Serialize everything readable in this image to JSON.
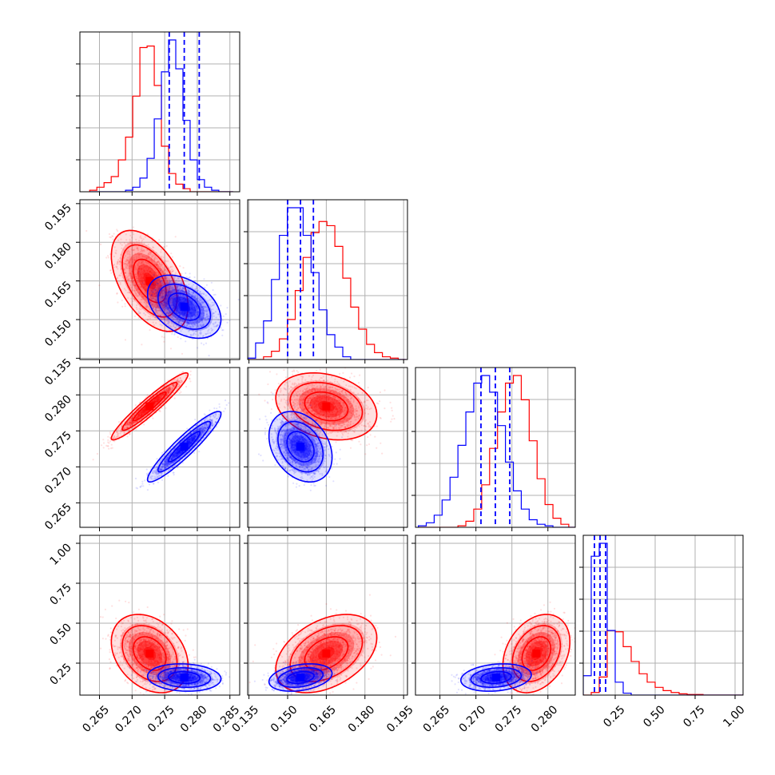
{
  "chart_data": {
    "type": "corner",
    "grid": true,
    "colors": {
      "model_a": "#ff0000",
      "model_b": "#0000ff"
    },
    "parameters": [
      {
        "ticks": [
          0.265,
          0.27,
          0.275,
          0.28,
          0.285
        ],
        "tick_labels": [
          "0.265",
          "0.270",
          "0.275",
          "0.280",
          "0.285"
        ],
        "range": [
          0.262,
          0.2865
        ]
      },
      {
        "ticks": [
          0.135,
          0.15,
          0.165,
          0.18,
          0.195
        ],
        "tick_labels": [
          "0.135",
          "0.150",
          "0.165",
          "0.180",
          "0.195"
        ],
        "range": [
          0.1345,
          0.1965
        ]
      },
      {
        "ticks": [
          0.265,
          0.27,
          0.275,
          0.28
        ],
        "tick_labels": [
          "0.265",
          "0.270",
          "0.275",
          "0.280"
        ],
        "range": [
          0.2616,
          0.2838
        ]
      },
      {
        "ticks": [
          0.25,
          0.5,
          0.75,
          1.0
        ],
        "tick_labels": [
          "0.25",
          "0.50",
          "0.75",
          "1.00"
        ],
        "range": [
          0.05,
          1.05
        ]
      }
    ],
    "samples": [
      {
        "color": "#ff0000",
        "mean": [
          0.2727,
          0.165,
          0.2784,
          0.31
        ],
        "sd": [
          0.0024,
          0.008,
          0.0019,
          0.1
        ],
        "corr": [
          [
            1,
            -0.5,
            0.95,
            -0.3
          ],
          [
            -0.5,
            1,
            -0.25,
            0.4
          ],
          [
            0.95,
            -0.25,
            1,
            0.3
          ],
          [
            -0.3,
            0.4,
            0.3,
            1
          ]
        ]
      },
      {
        "color": "#0000ff",
        "mean": [
          0.278,
          0.155,
          0.2728,
          0.16
        ],
        "sd": [
          0.0023,
          0.005,
          0.002,
          0.035
        ],
        "corr": [
          [
            1,
            -0.4,
            0.93,
            -0.1
          ],
          [
            -0.4,
            1,
            -0.3,
            0.3
          ],
          [
            0.93,
            -0.3,
            1,
            0.2
          ],
          [
            -0.1,
            0.3,
            0.2,
            1
          ]
        ]
      }
    ],
    "quantile_lines": {
      "color": "#0000ff",
      "style": "dashed",
      "values": [
        [
          0.2757,
          0.278,
          0.2803
        ],
        [
          0.15,
          0.155,
          0.16
        ],
        [
          0.2707,
          0.2727,
          0.2747
        ],
        [
          0.12,
          0.155,
          0.19
        ]
      ]
    },
    "histograms": [
      {
        "bins": 20,
        "range": [
          0.2635,
          0.2855
        ],
        "red": [
          1,
          3,
          6,
          10,
          21,
          36,
          63,
          95,
          96,
          70,
          30,
          12,
          5,
          2,
          0,
          0,
          0,
          0,
          0,
          0
        ],
        "blue": [
          0,
          0,
          0,
          0,
          0,
          1,
          3,
          9,
          22,
          48,
          79,
          100,
          81,
          47,
          21,
          8,
          3,
          1,
          0,
          0
        ]
      },
      {
        "bins": 20,
        "range": [
          0.1345,
          0.196
        ],
        "red": [
          0,
          0,
          2,
          6,
          15,
          29,
          50,
          74,
          92,
          100,
          97,
          82,
          59,
          38,
          22,
          11,
          5,
          2,
          1,
          0
        ],
        "blue": [
          1,
          12,
          28,
          58,
          90,
          110,
          110,
          90,
          63,
          36,
          18,
          9,
          2,
          0,
          0,
          0,
          0,
          0,
          0,
          0
        ]
      },
      {
        "bins": 20,
        "range": [
          0.262,
          0.284
        ],
        "red": [
          0,
          0,
          0,
          0,
          0,
          1,
          4,
          12,
          28,
          52,
          76,
          95,
          100,
          84,
          57,
          32,
          15,
          6,
          2,
          0
        ],
        "blue": [
          1,
          3,
          8,
          18,
          33,
          54,
          76,
          95,
          100,
          89,
          67,
          43,
          24,
          12,
          5,
          2,
          1,
          0,
          0,
          0
        ]
      },
      {
        "bins": 20,
        "range": [
          0.05,
          1.05
        ],
        "red": [
          0,
          4,
          28,
          100,
          98,
          75,
          52,
          33,
          20,
          12,
          7,
          4,
          2,
          1,
          1,
          0,
          0,
          0,
          0,
          0
        ],
        "blue": [
          30,
          215,
          235,
          100,
          20,
          3,
          0,
          0,
          0,
          0,
          0,
          0,
          0,
          0,
          0,
          0,
          0,
          0,
          0,
          0
        ]
      }
    ]
  }
}
